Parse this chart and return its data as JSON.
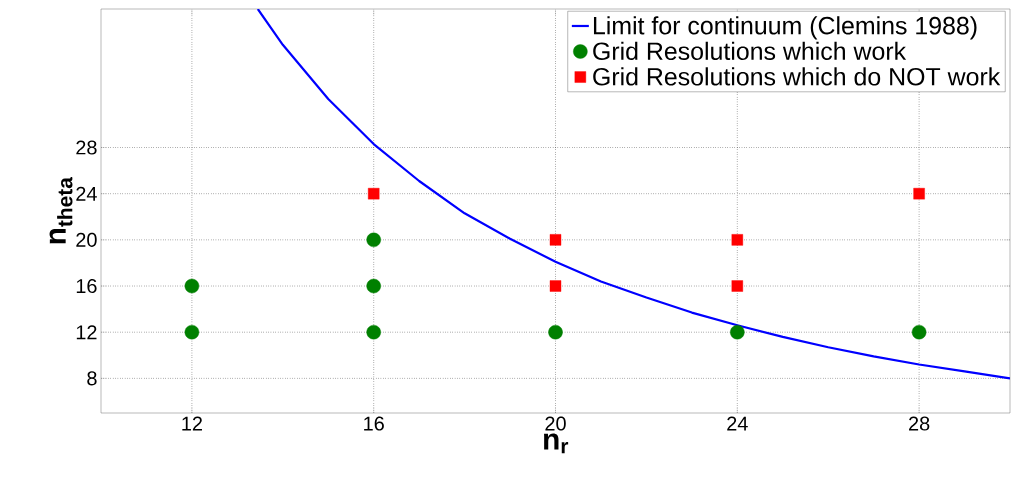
{
  "chart_data": {
    "type": "scatter",
    "xlabel": "n$_{r}$",
    "ylabel": "n$_{theta}$",
    "xlim": [
      10,
      30
    ],
    "ylim": [
      5,
      40
    ],
    "xticks": [
      12,
      16,
      20,
      24,
      28
    ],
    "yticks": [
      8,
      12,
      16,
      20,
      24,
      28
    ],
    "grid": true,
    "legend": "top right",
    "series": [
      {
        "name": "Limit for continuum (Clemins 1988)",
        "type": "line",
        "color": "#0000ff",
        "marker": "none",
        "line_style": "solid",
        "x": [
          13.45,
          14,
          15,
          16,
          17,
          18,
          19,
          20,
          21,
          22,
          23,
          24,
          25,
          26,
          27,
          28,
          29,
          30
        ],
        "values": [
          40,
          36.9,
          32.2,
          28.3,
          25.1,
          22.3,
          20.1,
          18.1,
          16.4,
          15.0,
          13.7,
          12.6,
          11.6,
          10.7,
          9.9,
          9.2,
          8.6,
          8.0
        ]
      },
      {
        "name": "Grid Resolutions which work",
        "color": "#008000",
        "marker": "circle",
        "x": [
          12,
          12,
          16,
          16,
          16,
          20,
          24,
          28
        ],
        "values": [
          12,
          16,
          12,
          16,
          20,
          12,
          12,
          12
        ]
      },
      {
        "name": "Grid Resolutions which do NOT work",
        "color": "#ff0000",
        "marker": "square",
        "x": [
          16,
          20,
          20,
          24,
          24,
          28
        ],
        "values": [
          24,
          16,
          20,
          16,
          20,
          24
        ]
      }
    ]
  }
}
